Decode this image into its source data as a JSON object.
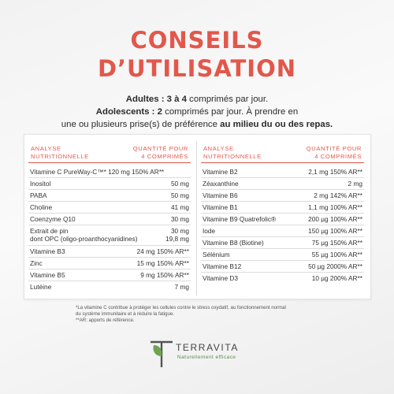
{
  "title": {
    "line1": "CONSEILS",
    "line2": "D’UTILISATION"
  },
  "intro": {
    "adults_label": "Adultes : 3 à 4",
    "adults_rest": " comprimés par jour.",
    "teens_label": "Adolescents : 2",
    "teens_rest": " comprimés par jour. À prendre en",
    "line3_start": "une ou plusieurs prise(s) de préférence ",
    "line3_bold": "au milieu du ou des repas."
  },
  "left_column": {
    "header_left": [
      "ANALYSE",
      "NUTRITIONNELLE"
    ],
    "header_right": [
      "QUANTITÉ POUR",
      "4 COMPRIMÉS"
    ],
    "rows": [
      {
        "name": "Vitamine C PureWay-C™* 120 mg 150% AR**",
        "value": ""
      },
      {
        "name": "Inositol",
        "value": "50 mg"
      },
      {
        "name": "PABA",
        "value": "50 mg"
      },
      {
        "name": "Choline",
        "value": "41 mg"
      },
      {
        "name": "Coenzyme Q10",
        "value": "30 mg"
      },
      {
        "name": "Extrait de pin",
        "name2": "dont OPC (oligo-proanthocyanidines)",
        "value": "30 mg",
        "value2": "19,8 mg"
      },
      {
        "name": "Vitamine B3",
        "value": "24 mg 150% AR**"
      },
      {
        "name": "Zinc",
        "value": "15 mg 150% AR**"
      },
      {
        "name": "Vitamine B5",
        "value": "9 mg 150% AR**"
      },
      {
        "name": "Lutéine",
        "value": "7 mg"
      }
    ]
  },
  "right_column": {
    "header_left": [
      "ANALYSE",
      "NUTRITIONNELLE"
    ],
    "header_right": [
      "QUANTITÉ POUR",
      "4 COMPRIMÉS"
    ],
    "rows": [
      {
        "name": "Vitamine B2",
        "value": "2,1 mg  150% AR**"
      },
      {
        "name": "Zéaxanthine",
        "value": "2 mg"
      },
      {
        "name": "Vitamine B6",
        "value": "2 mg 142% AR**"
      },
      {
        "name": "Vitamine B1",
        "value": "1,1 mg 100% AR**"
      },
      {
        "name": "Vitamine B9 Quatrefolic®",
        "value": "200 µg 100% AR**"
      },
      {
        "name": "Iode",
        "value": "150 µg 100% AR**"
      },
      {
        "name": "Vitamine B8 (Biotine)",
        "value": "75 µg 150% AR**"
      },
      {
        "name": "Sélénium",
        "value": "55 µg 100% AR**"
      },
      {
        "name": "Vitamine B12",
        "value": "50 µg 2000% AR**"
      },
      {
        "name": "Vitamine D3",
        "value": "10 µg 200% AR**"
      }
    ]
  },
  "notes": {
    "line1": "*La vitamine C contribue à protéger les cellules contre le stress oxydatif, au fonctionnement normal",
    "line2": "du système immunitaire et à réduire la fatigue.",
    "line3": "**AR: apports de référence."
  },
  "brand": {
    "name": "TERRAVITA",
    "tagline": "Naturellement efficace",
    "logo_icon": "leaf-t-logo",
    "accent_color": "#e3574b",
    "leaf_color": "#6fa34f"
  }
}
